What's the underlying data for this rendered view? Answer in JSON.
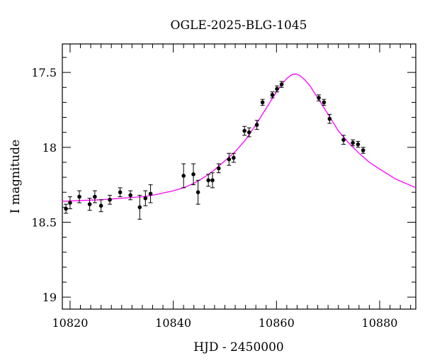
{
  "chart_data": {
    "type": "scatter",
    "title": "OGLE-2025-BLG-1045",
    "xlabel": "HJD - 2450000",
    "ylabel": "I magnitude",
    "xlim": [
      10818.5,
      10887
    ],
    "ylim": [
      19.08,
      17.31
    ],
    "y_inverted": true,
    "grid": false,
    "xticks": [
      10820,
      10840,
      10860,
      10880
    ],
    "xtick_labels": [
      "10820",
      "10840",
      "10860",
      "10880"
    ],
    "yticks": [
      17.5,
      18,
      18.5,
      19
    ],
    "ytick_labels": [
      "17.5",
      "18",
      "18.5",
      "19"
    ],
    "series": [
      {
        "kind": "points",
        "color": "#000000",
        "x": [
          10819.2,
          10820.0,
          10821.8,
          10823.8,
          10824.8,
          10826.0,
          10827.7,
          10829.7,
          10831.7,
          10833.5,
          10834.6,
          10835.6,
          10842.0,
          10843.9,
          10844.8,
          10846.8,
          10847.6,
          10848.8,
          10850.8,
          10851.7,
          10853.8,
          10854.7,
          10856.2,
          10857.3,
          10859.2,
          10860.1,
          10861.0,
          10868.2,
          10869.2,
          10870.3,
          10873.0,
          10874.8,
          10875.8,
          10876.8
        ],
        "y": [
          18.41,
          18.37,
          18.33,
          18.38,
          18.33,
          18.39,
          18.35,
          18.3,
          18.32,
          18.4,
          18.34,
          18.31,
          18.19,
          18.18,
          18.3,
          18.22,
          18.22,
          18.14,
          18.08,
          18.07,
          17.89,
          17.9,
          17.85,
          17.7,
          17.65,
          17.61,
          17.58,
          17.67,
          17.7,
          17.81,
          17.95,
          17.97,
          17.98,
          18.02
        ],
        "yerr": [
          0.03,
          0.04,
          0.04,
          0.04,
          0.04,
          0.04,
          0.03,
          0.03,
          0.03,
          0.08,
          0.05,
          0.06,
          0.08,
          0.07,
          0.08,
          0.04,
          0.05,
          0.03,
          0.04,
          0.03,
          0.03,
          0.03,
          0.03,
          0.02,
          0.02,
          0.02,
          0.02,
          0.02,
          0.02,
          0.03,
          0.03,
          0.02,
          0.02,
          0.02
        ]
      },
      {
        "kind": "model",
        "color": "#ff00ff",
        "x": [
          10818.5,
          10822,
          10826,
          10830,
          10834,
          10836,
          10838,
          10840,
          10842,
          10844,
          10846,
          10848,
          10850,
          10852,
          10854,
          10856,
          10858,
          10860,
          10861,
          10862,
          10863,
          10863.8,
          10864.5,
          10865.5,
          10866.5,
          10868,
          10870,
          10872,
          10874,
          10876,
          10878,
          10880,
          10883,
          10887
        ],
        "y": [
          18.36,
          18.355,
          18.35,
          18.34,
          18.33,
          18.32,
          18.305,
          18.29,
          18.27,
          18.24,
          18.2,
          18.15,
          18.09,
          18.03,
          17.95,
          17.85,
          17.74,
          17.63,
          17.58,
          17.54,
          17.515,
          17.51,
          17.52,
          17.55,
          17.59,
          17.67,
          17.78,
          17.89,
          17.97,
          18.04,
          18.1,
          18.145,
          18.21,
          18.27
        ]
      }
    ]
  }
}
